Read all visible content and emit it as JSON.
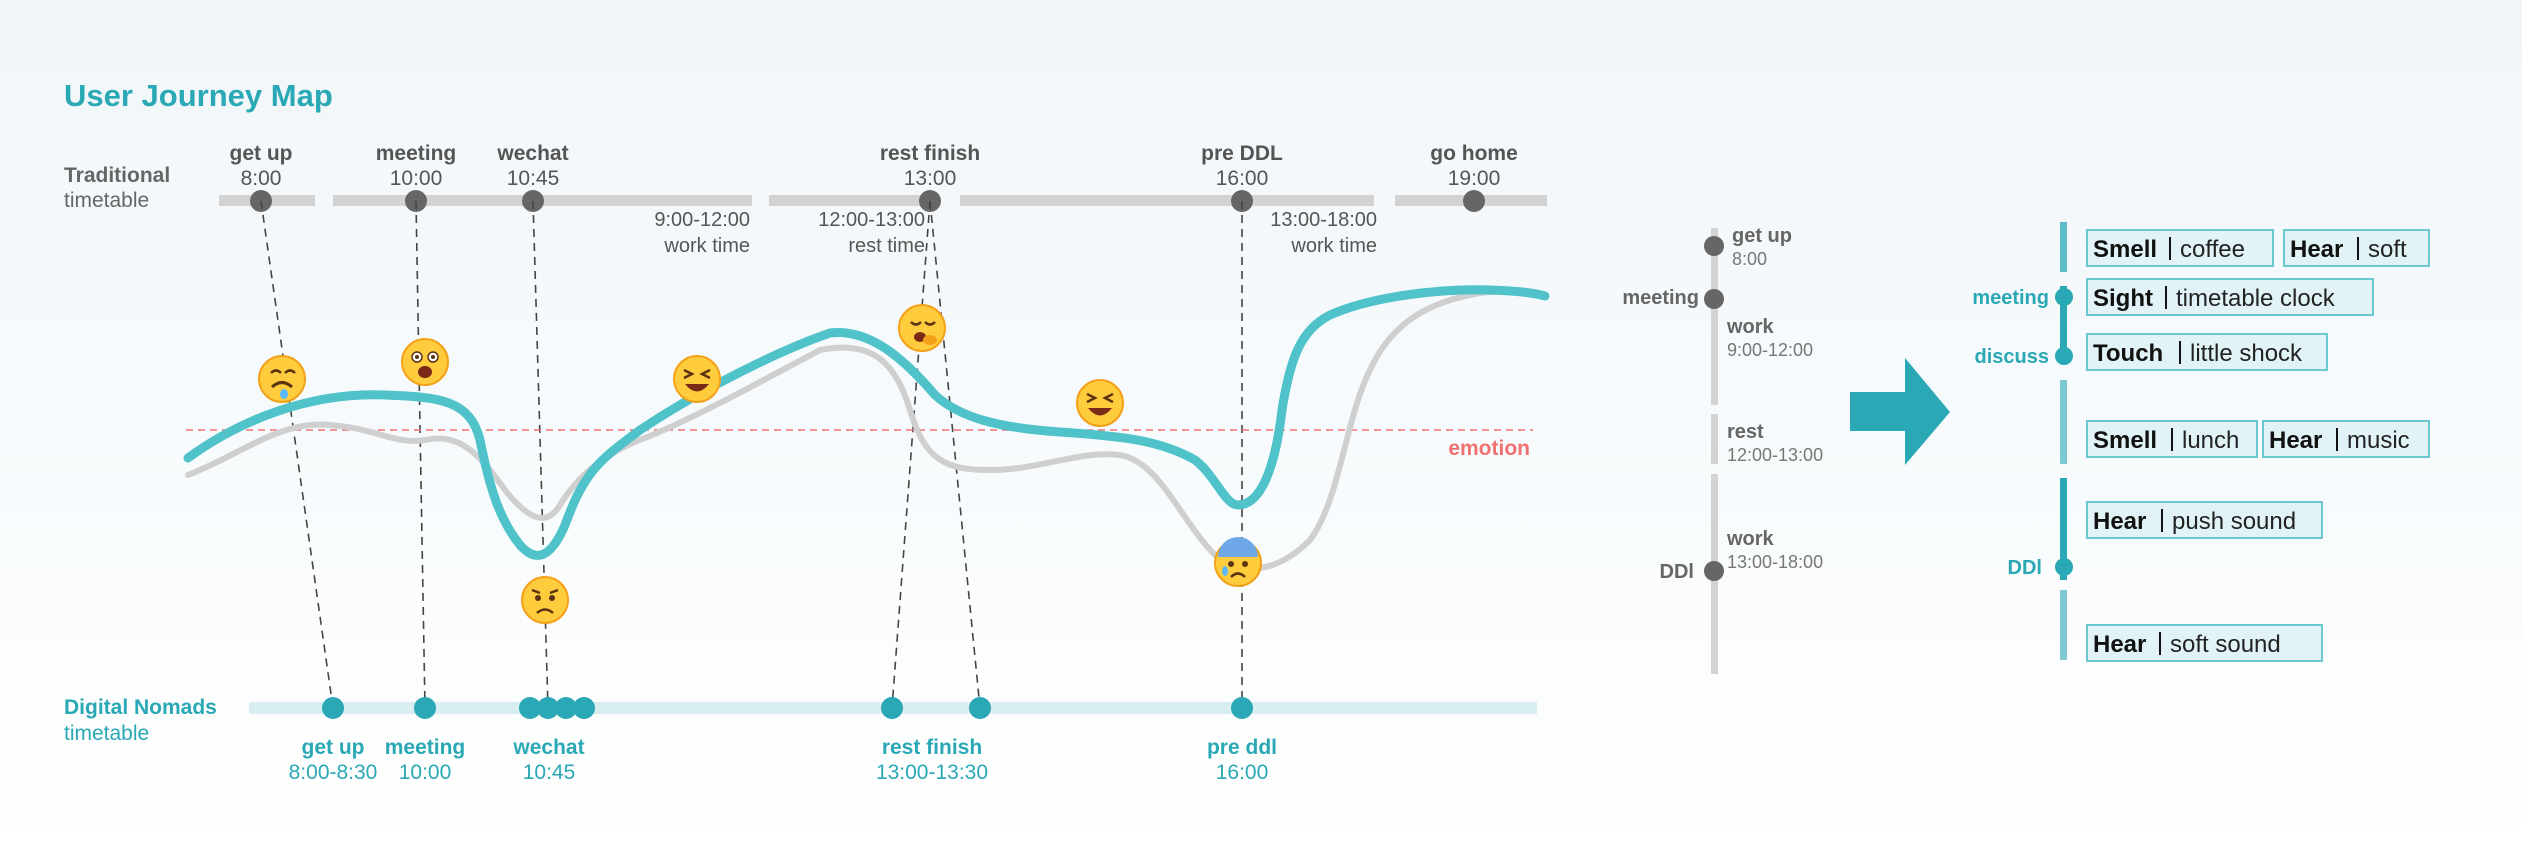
{
  "title": "User Journey Map",
  "traditional": {
    "label": "Traditional",
    "sublabel": "timetable",
    "events": [
      {
        "name": "get up",
        "time": "8:00"
      },
      {
        "name": "meeting",
        "time": "10:00"
      },
      {
        "name": "wechat",
        "time": "10:45"
      },
      {
        "name": "rest finish",
        "time": "13:00"
      },
      {
        "name": "pre DDL",
        "time": "16:00"
      },
      {
        "name": "go home",
        "time": "19:00"
      }
    ],
    "ranges": [
      {
        "range": "9:00-12:00",
        "label": "work time"
      },
      {
        "range": "12:00-13:00",
        "label": "rest time"
      },
      {
        "range": "13:00-18:00",
        "label": "work time"
      }
    ]
  },
  "emotion_label": "emotion",
  "nomads": {
    "label": "Digital Nomads",
    "sublabel": "timetable",
    "events": [
      {
        "name": "get up",
        "time": "8:00-8:30"
      },
      {
        "name": "meeting",
        "time": "10:00"
      },
      {
        "name": "wechat",
        "time": "10:45"
      },
      {
        "name": "rest finish",
        "time": "13:00-13:30"
      },
      {
        "name": "pre ddl",
        "time": "16:00"
      }
    ]
  },
  "emojis": [
    "sad-drooling-face",
    "scared-face",
    "laughing-face",
    "yawning-face",
    "grinning-squinting-face",
    "worried-face",
    "anxious-sweat-face"
  ],
  "schedule": {
    "left_labels": {
      "meeting": "meeting",
      "ddl": "DDl"
    },
    "items": [
      {
        "title": "get up",
        "sub": "8:00"
      },
      {
        "title": "work",
        "sub": "9:00-12:00"
      },
      {
        "title": "rest",
        "sub": "12:00-13:00"
      },
      {
        "title": "work",
        "sub": "13:00-18:00"
      }
    ]
  },
  "senses": {
    "labels": {
      "meeting": "meeting",
      "discuss": "discuss",
      "ddl": "DDl"
    },
    "rows": [
      [
        {
          "sense": "Smell",
          "value": "coffee"
        },
        {
          "sense": "Hear",
          "value": "soft"
        }
      ],
      [
        {
          "sense": "Sight",
          "value": "timetable clock"
        }
      ],
      [
        {
          "sense": "Touch",
          "value": "little shock"
        }
      ],
      [
        {
          "sense": "Smell",
          "value": "lunch"
        },
        {
          "sense": "Hear",
          "value": "music"
        }
      ],
      [
        {
          "sense": "Hear",
          "value": "push sound"
        }
      ],
      [
        {
          "sense": "Hear",
          "value": "soft sound"
        }
      ]
    ]
  },
  "colors": {
    "teal": "#2aa8b5",
    "curve_teal": "#4fc3c9",
    "curve_gray": "#cfcfcf",
    "track_gray": "#d3d3d3",
    "track_teal": "#d8eef1",
    "dot_gray": "#666666",
    "emotion_red": "#f07171",
    "sense_box_bg": "#e1f3f6",
    "sense_box_border": "#6cc8d0"
  }
}
